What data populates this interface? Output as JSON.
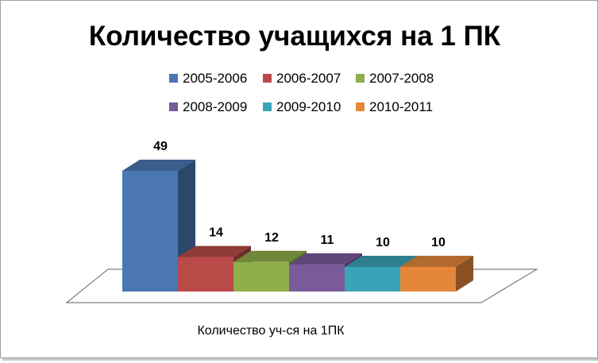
{
  "chart_data": {
    "type": "bar",
    "title": "Количество учащихся на 1 ПК",
    "xlabel": "Количество уч-ся на 1ПК",
    "ylabel": "",
    "categories": [
      "Количество уч-ся на 1ПК"
    ],
    "series": [
      {
        "name": "2005-2006",
        "values": [
          49
        ],
        "color": "#4a77b4"
      },
      {
        "name": "2006-2007",
        "values": [
          14
        ],
        "color": "#b94a48"
      },
      {
        "name": "2007-2008",
        "values": [
          12
        ],
        "color": "#8fad4a"
      },
      {
        "name": "2008-2009",
        "values": [
          11
        ],
        "color": "#7a5a9a"
      },
      {
        "name": "2009-2010",
        "values": [
          10
        ],
        "color": "#3ba3b8"
      },
      {
        "name": "2010-2011",
        "values": [
          10
        ],
        "color": "#e4873a"
      }
    ],
    "grid": false,
    "legend_position": "top",
    "three_d": true,
    "data_labels": true
  }
}
